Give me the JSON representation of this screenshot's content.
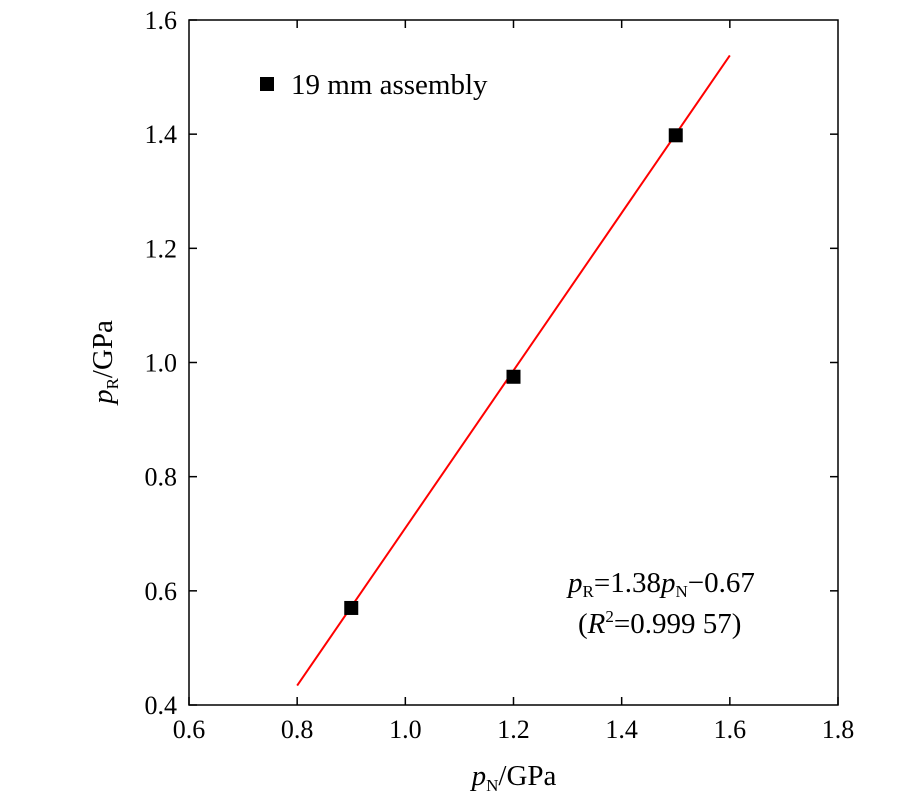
{
  "chart_data": {
    "type": "scatter",
    "title": "",
    "xlabel": {
      "var": "p",
      "sub": "N",
      "unit": "/GPa"
    },
    "ylabel": {
      "var": "p",
      "sub": "R",
      "unit": "/GPa"
    },
    "xlim": [
      0.6,
      1.8
    ],
    "ylim": [
      0.4,
      1.6
    ],
    "xticks": [
      "0.6",
      "0.8",
      "1.0",
      "1.2",
      "1.4",
      "1.6",
      "1.8"
    ],
    "yticks": [
      "0.4",
      "0.6",
      "0.8",
      "1.0",
      "1.2",
      "1.4",
      "1.6"
    ],
    "grid": false,
    "legend_position": "top-left",
    "series": [
      {
        "name": "19 mm assembly",
        "marker": "square",
        "color": "#000000",
        "x": [
          0.9,
          1.2,
          1.5
        ],
        "y": [
          0.57,
          0.975,
          1.398
        ]
      }
    ],
    "fit": {
      "slope": 1.38,
      "intercept": -0.67,
      "x_range": [
        0.8,
        1.6
      ],
      "color": "#ff0000",
      "equation": {
        "lhs_var": "p",
        "lhs_sub": "R",
        "mid": "=1.38",
        "rhs_var": "p",
        "rhs_sub": "N",
        "tail": "−0.67"
      },
      "r2": {
        "open": "(",
        "var": "R",
        "sup": "2",
        "rest": "=0.999 57)"
      }
    }
  }
}
